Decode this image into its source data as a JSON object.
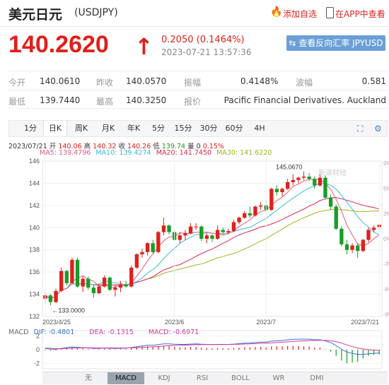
{
  "header": {
    "name": "美元日元",
    "code": "(USDJPY)",
    "add_watch": "添加自选",
    "open_app": "在APP中查看"
  },
  "quote": {
    "price": "140.2620",
    "arrow": "↑",
    "change": "0.2050 (0.1464%)",
    "time": "2023-07-21 13:57:36",
    "reverse_btn": "⇆ 查看反向汇率 JPYUSD"
  },
  "stats": {
    "open_label": "今开",
    "open": "140.0610",
    "prev_label": "昨收",
    "prev": "140.0570",
    "amp_label": "振幅",
    "amp": "0.4148%",
    "wave_label": "波幅",
    "wave": "0.581",
    "low_label": "最低",
    "low": "139.7440",
    "high_label": "最高",
    "high": "140.3250",
    "quoter_label": "报价",
    "quoter": "Pacific Financial Derivatives. Auckland"
  },
  "tabs": [
    "1分",
    "日K",
    "周K",
    "月K",
    "年K",
    "5分",
    "15分",
    "30分",
    "60分",
    "4H"
  ],
  "chart_info": {
    "date": "2023/07/21",
    "open_label": "开",
    "open": "140.06",
    "high_label": "高",
    "high": "140.32",
    "close_label": "收",
    "close": "140.26",
    "low_label": "低",
    "low": "139.74",
    "vol_label": "量",
    "vol": "0",
    "pct": "0.15%",
    "ma5": "MA5: 139.4796",
    "ma10": "MA10: 139.4274",
    "ma20": "MA20: 141.7450",
    "ma30": "MA30: 141.6220"
  },
  "macd_info": {
    "label": "MACD",
    "dif": "DIF: -0.4801",
    "dea": "DEA: -0.1315",
    "macd": "MACD: -0.6971"
  },
  "indicator_tabs": [
    "无",
    "MACD",
    "KDJ",
    "RSI",
    "BOLL",
    "WR",
    "DMI"
  ],
  "watermark": "新浪财经",
  "chart_data": {
    "type": "candlestick",
    "ylim": [
      132,
      146
    ],
    "y_ticks": [
      "146",
      "144",
      "142",
      "140",
      "138",
      "136",
      "134",
      "132"
    ],
    "right_ticks": [
      "9%",
      "6%",
      "3%",
      "0%",
      "-3%",
      "-6%",
      "-9%"
    ],
    "x_ticks": [
      "2023/4/25",
      "2023/6",
      "2023/7",
      "2023/7/21"
    ],
    "annotations": {
      "max": "145.0670",
      "min": "133.0000"
    },
    "macd_ticks": [
      "2",
      "0",
      "-2"
    ],
    "colors": {
      "up": "#e0201b",
      "down": "#1a9c2a",
      "ma5": "#e35a7a",
      "ma10": "#3bbbd6",
      "ma20": "#d8274f",
      "ma30": "#a2b51a"
    },
    "candles": [
      [
        133.6,
        134.2,
        133.2,
        133.9
      ],
      [
        133.9,
        134.0,
        133.0,
        133.3
      ],
      [
        133.3,
        134.5,
        133.2,
        134.3
      ],
      [
        134.3,
        136.4,
        134.2,
        136.1
      ],
      [
        136.1,
        136.2,
        134.8,
        135.0
      ],
      [
        135.0,
        137.3,
        134.9,
        137.1
      ],
      [
        137.1,
        137.3,
        134.6,
        134.7
      ],
      [
        134.7,
        135.6,
        134.2,
        135.4
      ],
      [
        135.4,
        135.6,
        134.4,
        134.6
      ],
      [
        134.6,
        134.9,
        133.7,
        134.1
      ],
      [
        134.1,
        134.9,
        134.0,
        134.7
      ],
      [
        134.7,
        135.7,
        134.6,
        135.5
      ],
      [
        135.5,
        135.6,
        134.3,
        134.4
      ],
      [
        134.4,
        134.8,
        133.8,
        134.6
      ],
      [
        134.6,
        135.2,
        134.2,
        134.9
      ],
      [
        134.9,
        135.2,
        134.6,
        134.7
      ],
      [
        134.7,
        136.6,
        134.6,
        136.4
      ],
      [
        136.4,
        137.7,
        136.3,
        137.6
      ],
      [
        137.6,
        138.1,
        137.3,
        137.8
      ],
      [
        137.8,
        138.7,
        137.5,
        138.6
      ],
      [
        138.6,
        138.9,
        137.7,
        137.8
      ],
      [
        137.8,
        139.7,
        137.7,
        139.6
      ],
      [
        139.6,
        140.9,
        139.3,
        140.2
      ],
      [
        140.2,
        140.3,
        139.4,
        139.6
      ],
      [
        139.6,
        139.8,
        138.8,
        138.9
      ],
      [
        138.9,
        139.6,
        138.6,
        139.3
      ],
      [
        139.3,
        139.8,
        138.9,
        139.5
      ],
      [
        139.5,
        140.4,
        139.4,
        140.1
      ],
      [
        140.1,
        140.4,
        139.8,
        140.1
      ],
      [
        140.1,
        140.2,
        138.8,
        139.0
      ],
      [
        139.0,
        139.5,
        138.6,
        139.3
      ],
      [
        139.3,
        139.4,
        138.7,
        139.0
      ],
      [
        139.0,
        140.2,
        138.9,
        139.8
      ],
      [
        139.8,
        140.0,
        139.4,
        139.6
      ],
      [
        139.6,
        139.9,
        139.4,
        139.7
      ],
      [
        139.7,
        140.7,
        139.6,
        140.5
      ],
      [
        140.5,
        141.0,
        140.3,
        140.9
      ],
      [
        140.9,
        141.5,
        140.8,
        141.3
      ],
      [
        141.3,
        141.9,
        140.9,
        141.1
      ],
      [
        141.1,
        142.0,
        141.0,
        141.9
      ],
      [
        141.9,
        142.3,
        141.6,
        142.0
      ],
      [
        142.0,
        142.5,
        141.4,
        141.6
      ],
      [
        141.6,
        143.6,
        141.5,
        143.5
      ],
      [
        143.5,
        143.8,
        142.9,
        143.2
      ],
      [
        143.2,
        143.6,
        142.8,
        143.5
      ],
      [
        143.5,
        144.4,
        143.4,
        144.1
      ],
      [
        144.1,
        144.8,
        143.8,
        144.3
      ],
      [
        144.3,
        144.6,
        144.0,
        144.5
      ],
      [
        144.5,
        145.07,
        144.3,
        144.6
      ],
      [
        144.6,
        144.9,
        144.2,
        144.4
      ],
      [
        144.4,
        144.6,
        143.5,
        143.8
      ],
      [
        143.8,
        144.8,
        143.7,
        144.5
      ],
      [
        144.5,
        144.7,
        142.6,
        142.7
      ],
      [
        142.7,
        143.0,
        141.6,
        141.9
      ],
      [
        141.9,
        142.1,
        139.8,
        139.9
      ],
      [
        139.9,
        140.1,
        138.3,
        138.5
      ],
      [
        138.5,
        138.9,
        137.6,
        138.0
      ],
      [
        138.0,
        138.6,
        137.7,
        138.4
      ],
      [
        138.4,
        138.6,
        137.3,
        137.9
      ],
      [
        137.9,
        139.0,
        137.8,
        138.9
      ],
      [
        138.9,
        140.0,
        138.7,
        139.8
      ],
      [
        139.8,
        140.2,
        139.6,
        140.0
      ],
      [
        140.06,
        140.32,
        139.74,
        140.26
      ]
    ],
    "macd": [
      -0.1,
      -0.15,
      -0.1,
      0.2,
      0.25,
      0.4,
      0.3,
      0.2,
      0.1,
      0.05,
      0.1,
      0.15,
      0.1,
      0.05,
      0.08,
      0.1,
      0.25,
      0.4,
      0.45,
      0.5,
      0.45,
      0.55,
      0.6,
      0.5,
      0.4,
      0.35,
      0.35,
      0.4,
      0.4,
      0.3,
      0.25,
      0.2,
      0.25,
      0.2,
      0.2,
      0.25,
      0.3,
      0.35,
      0.35,
      0.4,
      0.4,
      0.35,
      0.5,
      0.5,
      0.5,
      0.55,
      0.55,
      0.55,
      0.5,
      0.45,
      0.3,
      0.3,
      0.05,
      -0.3,
      -0.9,
      -1.6,
      -2.0,
      -1.9,
      -1.8,
      -1.3,
      -0.9,
      -0.75,
      -0.7
    ],
    "dif": [
      0.2,
      0.1,
      0.05,
      0.2,
      0.3,
      0.4,
      0.35,
      0.3,
      0.25,
      0.2,
      0.2,
      0.25,
      0.2,
      0.18,
      0.2,
      0.22,
      0.3,
      0.45,
      0.55,
      0.65,
      0.65,
      0.75,
      0.85,
      0.85,
      0.8,
      0.78,
      0.78,
      0.82,
      0.85,
      0.8,
      0.78,
      0.75,
      0.78,
      0.78,
      0.78,
      0.82,
      0.88,
      0.95,
      0.98,
      1.05,
      1.1,
      1.1,
      1.25,
      1.3,
      1.35,
      1.45,
      1.5,
      1.55,
      1.55,
      1.55,
      1.45,
      1.45,
      1.3,
      1.05,
      0.6,
      0.05,
      -0.35,
      -0.55,
      -0.7,
      -0.7,
      -0.6,
      -0.55,
      -0.48
    ],
    "dea": [
      0.25,
      0.2,
      0.15,
      0.15,
      0.2,
      0.22,
      0.25,
      0.27,
      0.27,
      0.27,
      0.26,
      0.26,
      0.26,
      0.25,
      0.25,
      0.25,
      0.26,
      0.3,
      0.33,
      0.38,
      0.42,
      0.47,
      0.53,
      0.58,
      0.62,
      0.65,
      0.67,
      0.7,
      0.73,
      0.74,
      0.75,
      0.75,
      0.76,
      0.76,
      0.77,
      0.78,
      0.8,
      0.83,
      0.85,
      0.89,
      0.93,
      0.96,
      1.0,
      1.05,
      1.1,
      1.15,
      1.2,
      1.25,
      1.3,
      1.34,
      1.36,
      1.38,
      1.37,
      1.32,
      1.18,
      0.96,
      0.7,
      0.45,
      0.25,
      0.1,
      0.0,
      -0.08,
      -0.13
    ]
  }
}
